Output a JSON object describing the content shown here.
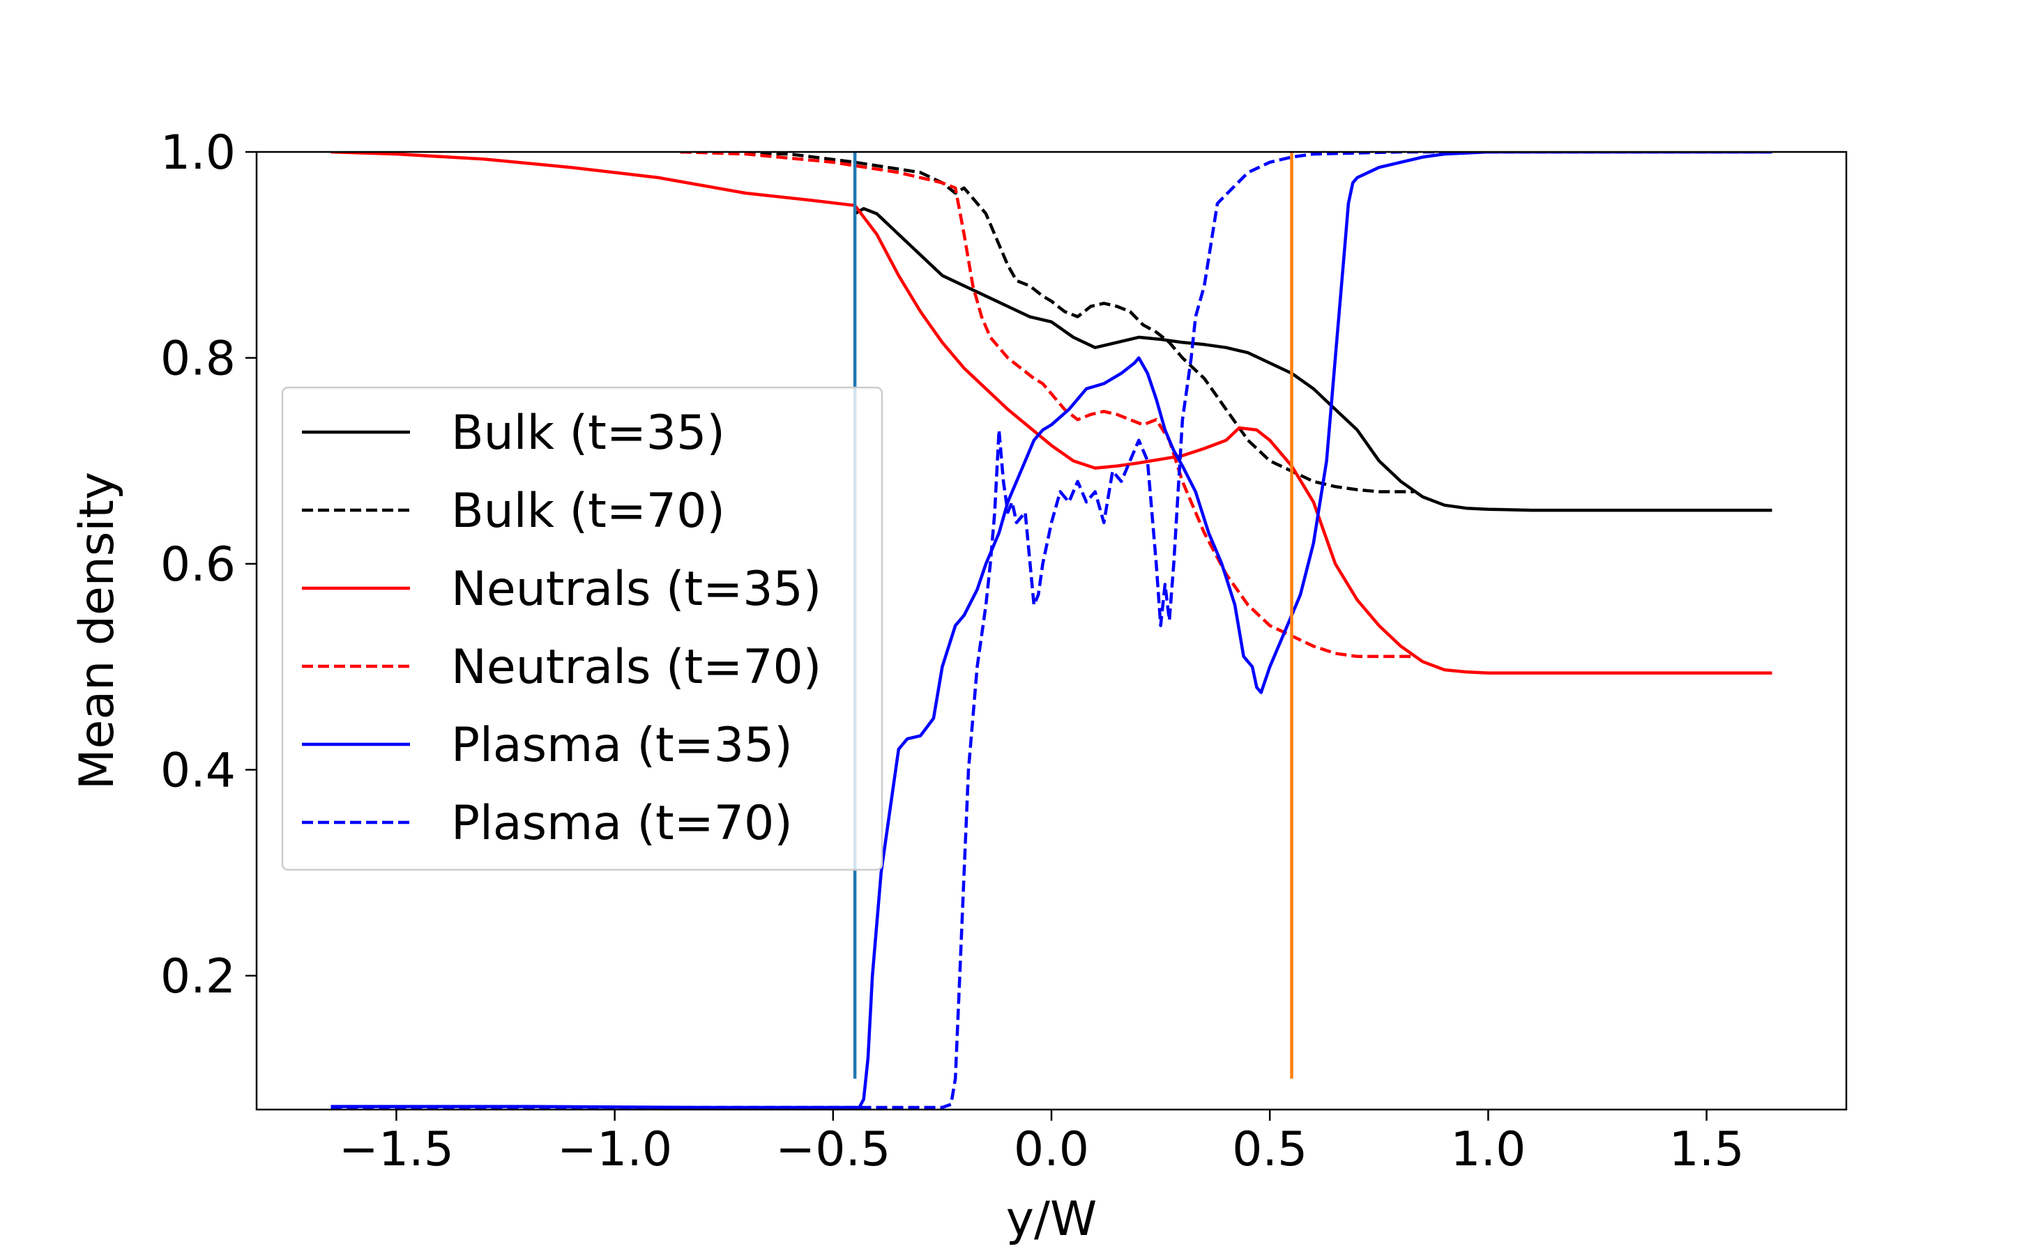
{
  "chart_data": {
    "type": "line",
    "xlabel": "y/W",
    "ylabel": "Mean density",
    "xlim": [
      -1.82,
      1.82
    ],
    "ylim": [
      0.07,
      1.0
    ],
    "xticks": [
      -1.5,
      -1.0,
      -0.5,
      0.0,
      0.5,
      1.0,
      1.5
    ],
    "xtick_labels": [
      "−1.5",
      "−1.0",
      "−0.5",
      "0.0",
      "0.5",
      "1.0",
      "1.5"
    ],
    "yticks": [
      0.2,
      0.4,
      0.6,
      0.8,
      1.0
    ],
    "ytick_labels": [
      "0.2",
      "0.4",
      "0.6",
      "0.8",
      "1.0"
    ],
    "grid": false,
    "legend_position": "center-left",
    "vertical_lines": [
      {
        "x": -0.45,
        "y_range": [
          0.1,
          1.0
        ],
        "color": "#1f77b4"
      },
      {
        "x": 0.55,
        "y_range": [
          0.1,
          1.0
        ],
        "color": "#ff7f0e"
      }
    ],
    "series": [
      {
        "name": "Bulk (t=35)",
        "color": "#000000",
        "dash": "solid",
        "x": [
          -0.45,
          -0.43,
          -0.4,
          -0.35,
          -0.3,
          -0.25,
          -0.2,
          -0.15,
          -0.1,
          -0.05,
          0.0,
          0.05,
          0.1,
          0.15,
          0.2,
          0.25,
          0.3,
          0.35,
          0.4,
          0.45,
          0.5,
          0.55,
          0.6,
          0.65,
          0.7,
          0.75,
          0.8,
          0.85,
          0.9,
          0.95,
          1.0,
          1.1,
          1.2,
          1.3,
          1.4,
          1.5,
          1.65
        ],
        "y": [
          0.94,
          0.945,
          0.94,
          0.92,
          0.9,
          0.88,
          0.87,
          0.86,
          0.85,
          0.84,
          0.835,
          0.82,
          0.81,
          0.815,
          0.82,
          0.818,
          0.815,
          0.813,
          0.81,
          0.805,
          0.795,
          0.785,
          0.77,
          0.75,
          0.73,
          0.7,
          0.68,
          0.665,
          0.657,
          0.654,
          0.653,
          0.652,
          0.652,
          0.652,
          0.652,
          0.652,
          0.652
        ]
      },
      {
        "name": "Bulk (t=70)",
        "color": "#000000",
        "dash": "dashed",
        "x": [
          -0.85,
          -0.6,
          -0.45,
          -0.3,
          -0.25,
          -0.22,
          -0.2,
          -0.18,
          -0.15,
          -0.12,
          -0.1,
          -0.08,
          -0.05,
          -0.02,
          0.0,
          0.03,
          0.06,
          0.09,
          0.12,
          0.15,
          0.18,
          0.21,
          0.24,
          0.27,
          0.3,
          0.35,
          0.4,
          0.45,
          0.5,
          0.55,
          0.6,
          0.65,
          0.7,
          0.75,
          0.8,
          0.83
        ],
        "y": [
          1.0,
          0.998,
          0.99,
          0.98,
          0.97,
          0.96,
          0.965,
          0.955,
          0.94,
          0.91,
          0.89,
          0.875,
          0.87,
          0.86,
          0.855,
          0.845,
          0.84,
          0.85,
          0.853,
          0.85,
          0.845,
          0.832,
          0.825,
          0.815,
          0.8,
          0.78,
          0.75,
          0.72,
          0.7,
          0.69,
          0.68,
          0.675,
          0.672,
          0.67,
          0.67,
          0.67
        ]
      },
      {
        "name": "Neutrals (t=35)",
        "color": "#ff0000",
        "dash": "solid",
        "x": [
          -1.65,
          -1.5,
          -1.3,
          -1.1,
          -0.9,
          -0.7,
          -0.55,
          -0.45,
          -0.4,
          -0.35,
          -0.3,
          -0.25,
          -0.2,
          -0.1,
          0.0,
          0.05,
          0.1,
          0.15,
          0.2,
          0.3,
          0.35,
          0.4,
          0.43,
          0.47,
          0.5,
          0.55,
          0.6,
          0.65,
          0.7,
          0.75,
          0.8,
          0.85,
          0.9,
          0.95,
          1.0,
          1.2,
          1.4,
          1.65
        ],
        "y": [
          1.0,
          0.998,
          0.993,
          0.985,
          0.975,
          0.96,
          0.953,
          0.948,
          0.92,
          0.88,
          0.845,
          0.815,
          0.79,
          0.75,
          0.715,
          0.7,
          0.693,
          0.695,
          0.698,
          0.705,
          0.712,
          0.72,
          0.732,
          0.73,
          0.72,
          0.695,
          0.66,
          0.6,
          0.565,
          0.54,
          0.52,
          0.505,
          0.497,
          0.495,
          0.494,
          0.494,
          0.494,
          0.494
        ]
      },
      {
        "name": "Neutrals (t=70)",
        "color": "#ff0000",
        "dash": "dashed",
        "x": [
          -0.85,
          -0.7,
          -0.5,
          -0.35,
          -0.25,
          -0.22,
          -0.2,
          -0.18,
          -0.16,
          -0.14,
          -0.12,
          -0.1,
          -0.07,
          -0.04,
          -0.02,
          0.0,
          0.03,
          0.06,
          0.09,
          0.12,
          0.15,
          0.18,
          0.21,
          0.24,
          0.27,
          0.3,
          0.35,
          0.4,
          0.45,
          0.5,
          0.55,
          0.6,
          0.65,
          0.7,
          0.75,
          0.8,
          0.83
        ],
        "y": [
          1.0,
          0.998,
          0.99,
          0.98,
          0.97,
          0.965,
          0.92,
          0.87,
          0.84,
          0.82,
          0.81,
          0.8,
          0.79,
          0.78,
          0.775,
          0.765,
          0.75,
          0.74,
          0.745,
          0.748,
          0.745,
          0.74,
          0.735,
          0.74,
          0.72,
          0.68,
          0.63,
          0.59,
          0.56,
          0.54,
          0.53,
          0.52,
          0.513,
          0.51,
          0.51,
          0.51,
          0.51
        ]
      },
      {
        "name": "Plasma (t=35)",
        "color": "#0000ff",
        "dash": "solid",
        "x": [
          -1.65,
          -1.2,
          -0.8,
          -0.5,
          -0.44,
          -0.43,
          -0.42,
          -0.41,
          -0.39,
          -0.37,
          -0.35,
          -0.33,
          -0.3,
          -0.27,
          -0.25,
          -0.22,
          -0.2,
          -0.17,
          -0.15,
          -0.12,
          -0.1,
          -0.07,
          -0.04,
          -0.02,
          0.0,
          0.04,
          0.08,
          0.12,
          0.16,
          0.19,
          0.2,
          0.22,
          0.24,
          0.26,
          0.28,
          0.3,
          0.33,
          0.36,
          0.39,
          0.42,
          0.44,
          0.46,
          0.47,
          0.48,
          0.5,
          0.53,
          0.56,
          0.57,
          0.6,
          0.63,
          0.65,
          0.67,
          0.68,
          0.69,
          0.7,
          0.75,
          0.8,
          0.85,
          0.9,
          0.95,
          1.0,
          1.2,
          1.4,
          1.65
        ],
        "y": [
          0.073,
          0.073,
          0.072,
          0.072,
          0.072,
          0.08,
          0.12,
          0.2,
          0.3,
          0.36,
          0.42,
          0.43,
          0.433,
          0.45,
          0.5,
          0.54,
          0.55,
          0.575,
          0.6,
          0.63,
          0.66,
          0.69,
          0.72,
          0.73,
          0.735,
          0.75,
          0.77,
          0.775,
          0.785,
          0.795,
          0.8,
          0.785,
          0.76,
          0.73,
          0.71,
          0.695,
          0.67,
          0.63,
          0.6,
          0.56,
          0.51,
          0.5,
          0.48,
          0.475,
          0.5,
          0.53,
          0.56,
          0.57,
          0.62,
          0.7,
          0.8,
          0.9,
          0.95,
          0.97,
          0.975,
          0.985,
          0.99,
          0.995,
          0.998,
          0.999,
          1.0,
          1.0,
          1.0,
          1.0
        ]
      },
      {
        "name": "Plasma (t=70)",
        "color": "#0000ff",
        "dash": "dashed",
        "x": [
          -1.65,
          -1.2,
          -0.8,
          -0.4,
          -0.25,
          -0.23,
          -0.22,
          -0.21,
          -0.2,
          -0.19,
          -0.17,
          -0.15,
          -0.14,
          -0.13,
          -0.12,
          -0.11,
          -0.1,
          -0.09,
          -0.08,
          -0.06,
          -0.04,
          -0.03,
          -0.02,
          0.0,
          0.02,
          0.04,
          0.06,
          0.08,
          0.1,
          0.12,
          0.14,
          0.16,
          0.18,
          0.2,
          0.22,
          0.24,
          0.25,
          0.26,
          0.27,
          0.28,
          0.3,
          0.31,
          0.32,
          0.33,
          0.35,
          0.38,
          0.45,
          0.5,
          0.55,
          0.6,
          0.8,
          1.0,
          1.65
        ],
        "y": [
          0.072,
          0.072,
          0.072,
          0.072,
          0.072,
          0.075,
          0.1,
          0.2,
          0.3,
          0.4,
          0.5,
          0.56,
          0.6,
          0.65,
          0.73,
          0.68,
          0.65,
          0.66,
          0.64,
          0.65,
          0.56,
          0.57,
          0.6,
          0.64,
          0.67,
          0.66,
          0.68,
          0.66,
          0.67,
          0.64,
          0.69,
          0.68,
          0.7,
          0.72,
          0.7,
          0.6,
          0.54,
          0.58,
          0.545,
          0.6,
          0.74,
          0.77,
          0.8,
          0.84,
          0.87,
          0.95,
          0.98,
          0.99,
          0.995,
          0.998,
          1.0,
          1.0,
          1.0
        ]
      }
    ]
  }
}
